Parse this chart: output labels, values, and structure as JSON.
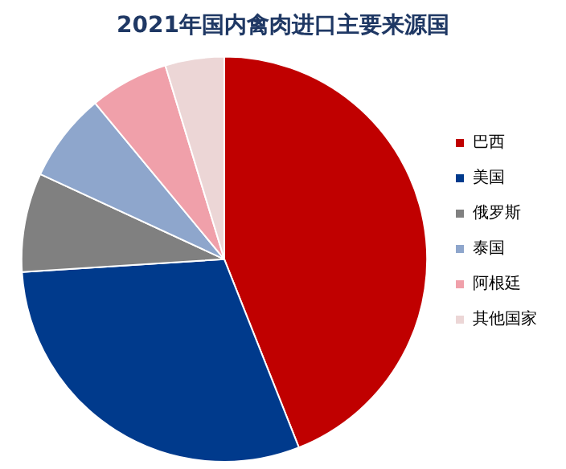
{
  "chart_data": {
    "type": "pie",
    "title": "2021年国内禽肉进口主要来源国",
    "categories": [
      "巴西",
      "美国",
      "俄罗斯",
      "泰国",
      "阿根廷",
      "其他国家"
    ],
    "values": [
      44.0,
      30.0,
      7.9,
      7.1,
      6.3,
      4.7
    ],
    "colors": [
      "#c00000",
      "#003a8c",
      "#808080",
      "#8ea6cc",
      "#f0a0aa",
      "#ecd6d6"
    ],
    "legend": "right"
  }
}
